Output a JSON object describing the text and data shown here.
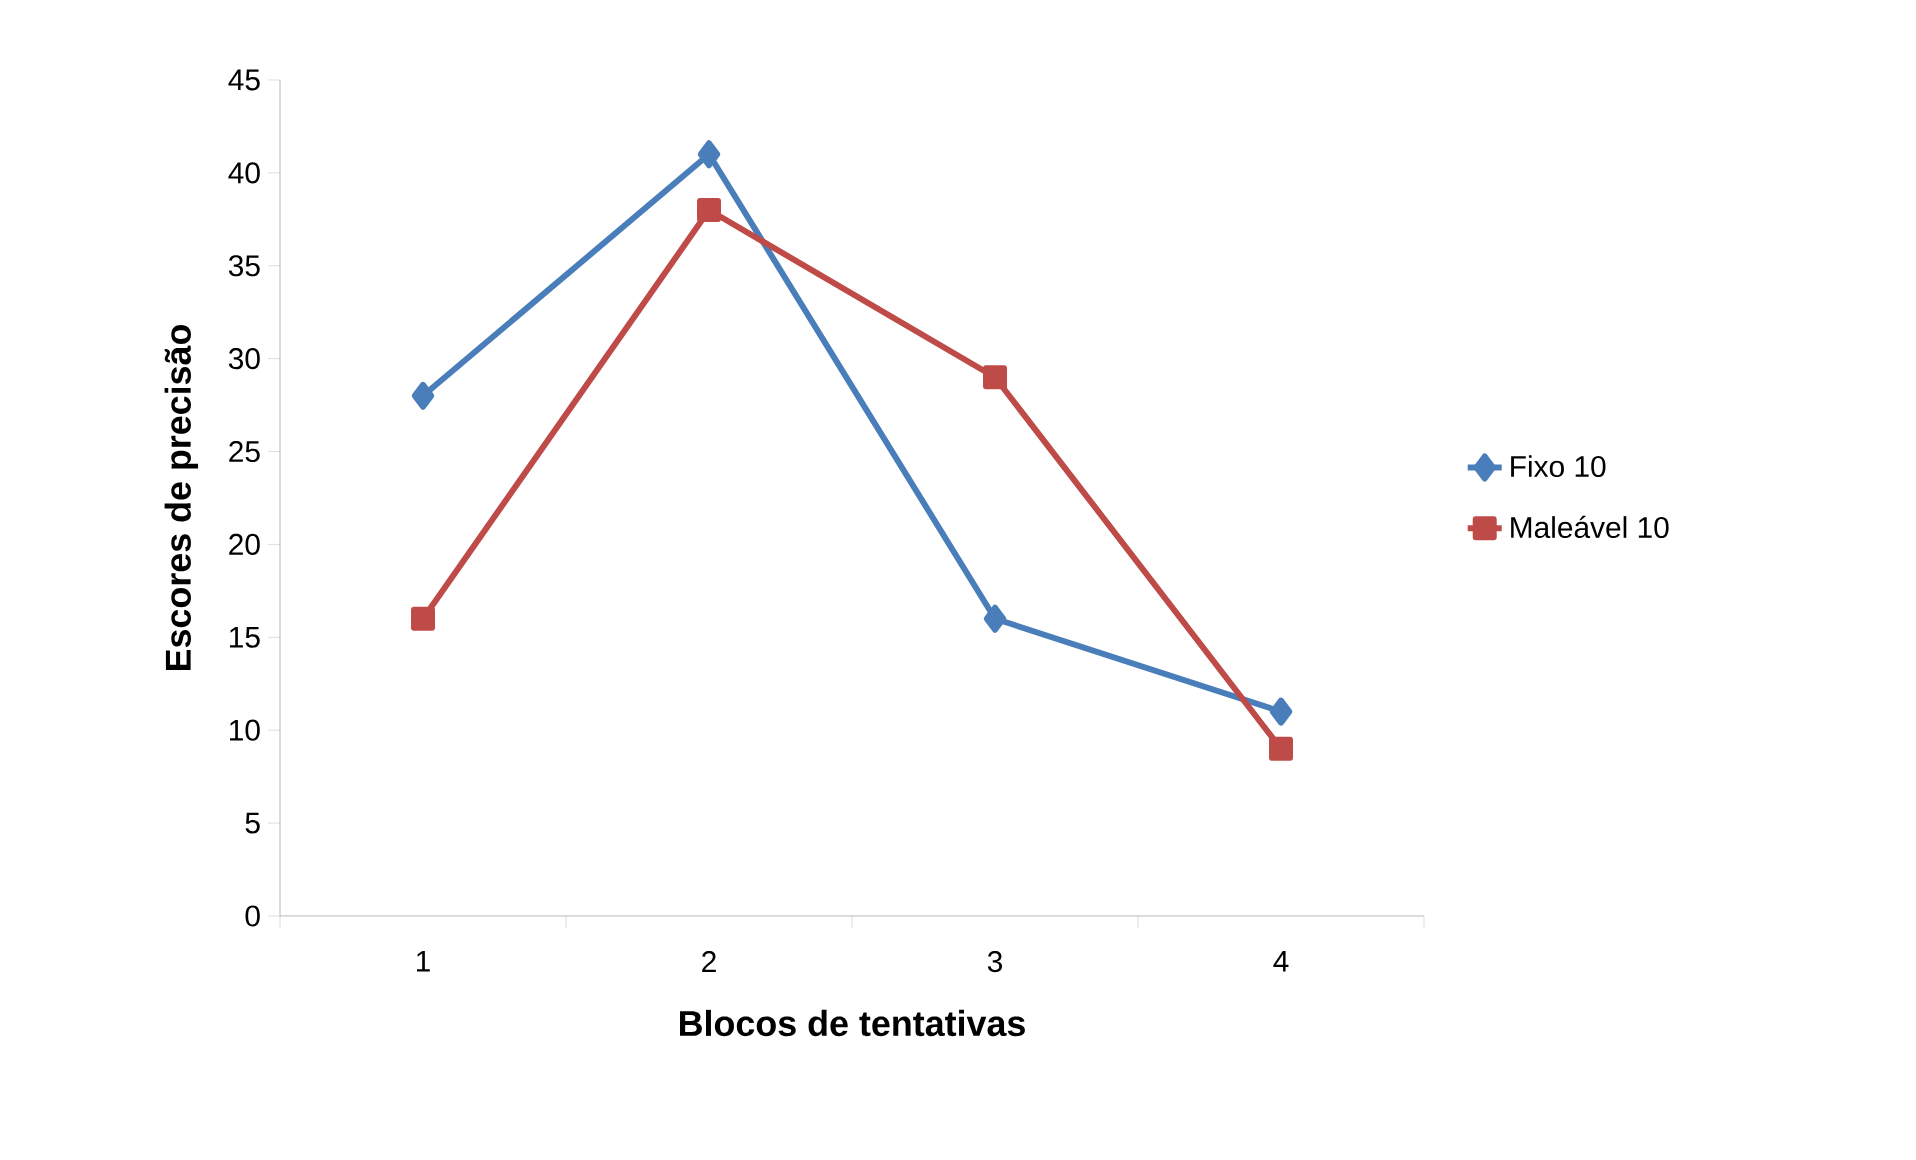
{
  "chart_data": {
    "type": "line",
    "xlabel": "Blocos de tentativas",
    "ylabel": "Escores de precisão",
    "categories": [
      "1",
      "2",
      "3",
      "4"
    ],
    "series": [
      {
        "name": "Fixo 10",
        "color": "#4a7ebb",
        "marker": "diamond",
        "values": [
          28,
          41,
          16,
          11
        ]
      },
      {
        "name": "Maleável 10",
        "color": "#be4b48",
        "marker": "square",
        "values": [
          16,
          38,
          29,
          9
        ]
      }
    ],
    "ylim": [
      0,
      45
    ],
    "yticks": [
      0,
      5,
      10,
      15,
      20,
      25,
      30,
      35,
      40,
      45
    ],
    "grid": false,
    "legend": "right"
  }
}
